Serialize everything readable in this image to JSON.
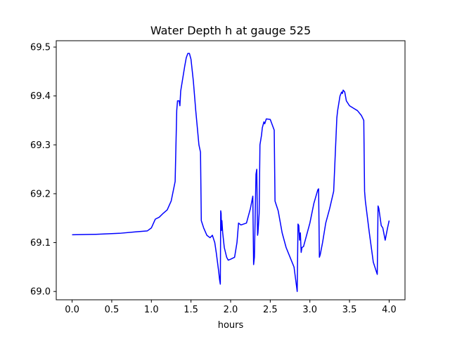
{
  "chart_data": {
    "type": "line",
    "title": "Water Depth h at gauge 525",
    "xlabel": "hours",
    "ylabel": "",
    "xlim": [
      -0.2,
      4.2
    ],
    "ylim": [
      68.983,
      69.513
    ],
    "xticks": [
      0.0,
      0.5,
      1.0,
      1.5,
      2.0,
      2.5,
      3.0,
      3.5,
      4.0
    ],
    "xtick_labels": [
      "0.0",
      "0.5",
      "1.0",
      "1.5",
      "2.0",
      "2.5",
      "3.0",
      "3.5",
      "4.0"
    ],
    "yticks": [
      69.0,
      69.1,
      69.2,
      69.3,
      69.4,
      69.5
    ],
    "ytick_labels": [
      "69.0",
      "69.1",
      "69.2",
      "69.3",
      "69.4",
      "69.5"
    ],
    "grid": false,
    "line_color": "#0000ff",
    "series": [
      {
        "name": "",
        "x": [
          0.0,
          0.3,
          0.6,
          0.8,
          0.95,
          1.0,
          1.05,
          1.1,
          1.15,
          1.2,
          1.25,
          1.3,
          1.32,
          1.33,
          1.35,
          1.36,
          1.37,
          1.38,
          1.4,
          1.42,
          1.44,
          1.46,
          1.48,
          1.5,
          1.53,
          1.56,
          1.6,
          1.62,
          1.63,
          1.66,
          1.7,
          1.74,
          1.77,
          1.8,
          1.82,
          1.85,
          1.86,
          1.87,
          1.875,
          1.88,
          1.885,
          1.89,
          1.9,
          1.92,
          1.95,
          1.97,
          2.0,
          2.05,
          2.08,
          2.1,
          2.13,
          2.2,
          2.25,
          2.28,
          2.29,
          2.3,
          2.32,
          2.33,
          2.34,
          2.345,
          2.36,
          2.37,
          2.38,
          2.39,
          2.4,
          2.42,
          2.43,
          2.45,
          2.5,
          2.55,
          2.56,
          2.57,
          2.6,
          2.65,
          2.7,
          2.75,
          2.8,
          2.84,
          2.85,
          2.86,
          2.87,
          2.88,
          2.89,
          2.9,
          2.92,
          2.95,
          3.0,
          3.05,
          3.1,
          3.11,
          3.12,
          3.13,
          3.16,
          3.2,
          3.25,
          3.3,
          3.34,
          3.35,
          3.36,
          3.38,
          3.4,
          3.41,
          3.42,
          3.44,
          3.46,
          3.5,
          3.55,
          3.6,
          3.65,
          3.68,
          3.69,
          3.7,
          3.75,
          3.8,
          3.85,
          3.86,
          3.87,
          3.9,
          3.92,
          3.95,
          3.98,
          4.0
        ],
        "y": [
          69.116,
          69.117,
          69.119,
          69.122,
          69.124,
          69.13,
          69.148,
          69.152,
          69.16,
          69.167,
          69.185,
          69.225,
          69.37,
          69.39,
          69.39,
          69.38,
          69.41,
          69.42,
          69.44,
          69.46,
          69.478,
          69.487,
          69.487,
          69.475,
          69.43,
          69.37,
          69.3,
          69.285,
          69.145,
          69.13,
          69.115,
          69.11,
          69.115,
          69.1,
          69.078,
          69.04,
          69.025,
          69.015,
          69.165,
          69.16,
          69.125,
          69.145,
          69.12,
          69.09,
          69.07,
          69.064,
          69.066,
          69.07,
          69.1,
          69.14,
          69.136,
          69.14,
          69.17,
          69.195,
          69.055,
          69.07,
          69.24,
          69.25,
          69.115,
          69.12,
          69.16,
          69.3,
          69.31,
          69.32,
          69.335,
          69.347,
          69.343,
          69.353,
          69.352,
          69.33,
          69.185,
          69.18,
          69.165,
          69.12,
          69.09,
          69.07,
          69.05,
          69.0,
          69.138,
          69.135,
          69.105,
          69.12,
          69.08,
          69.09,
          69.092,
          69.11,
          69.14,
          69.18,
          69.208,
          69.21,
          69.07,
          69.075,
          69.1,
          69.14,
          69.17,
          69.205,
          69.355,
          69.37,
          69.38,
          69.4,
          69.408,
          69.405,
          69.412,
          69.408,
          69.39,
          69.38,
          69.375,
          69.37,
          69.36,
          69.35,
          69.205,
          69.185,
          69.12,
          69.06,
          69.035,
          69.175,
          69.17,
          69.135,
          69.13,
          69.105,
          69.13,
          69.145
        ]
      }
    ]
  }
}
